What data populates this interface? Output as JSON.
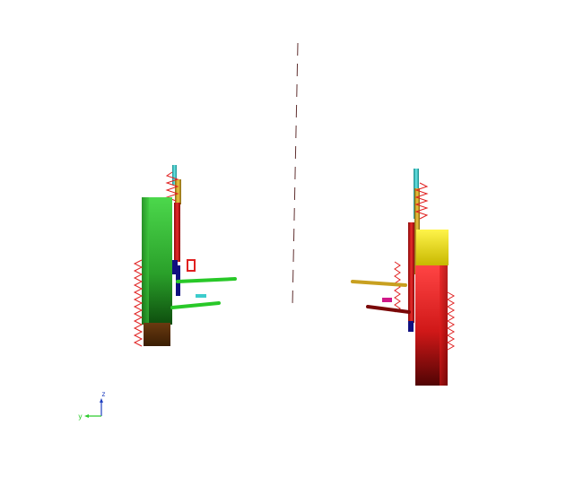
{
  "viewport": {
    "background": "#ffffff",
    "triad": {
      "z_label": "z",
      "y_label": "y",
      "z_color": "#1f3fbf",
      "y_color": "#2ecc2e"
    },
    "colors": {
      "green_body": "#2ea82e",
      "red_body": "#c81818",
      "yellow_body": "#e8e000",
      "spring": "#e02020",
      "cyan": "#3ccccc",
      "gold": "#c8a020",
      "navy": "#101080",
      "link_green": "#28c828",
      "dark_red": "#7a0808",
      "magenta": "#d01888",
      "centerline": "#603030"
    }
  }
}
